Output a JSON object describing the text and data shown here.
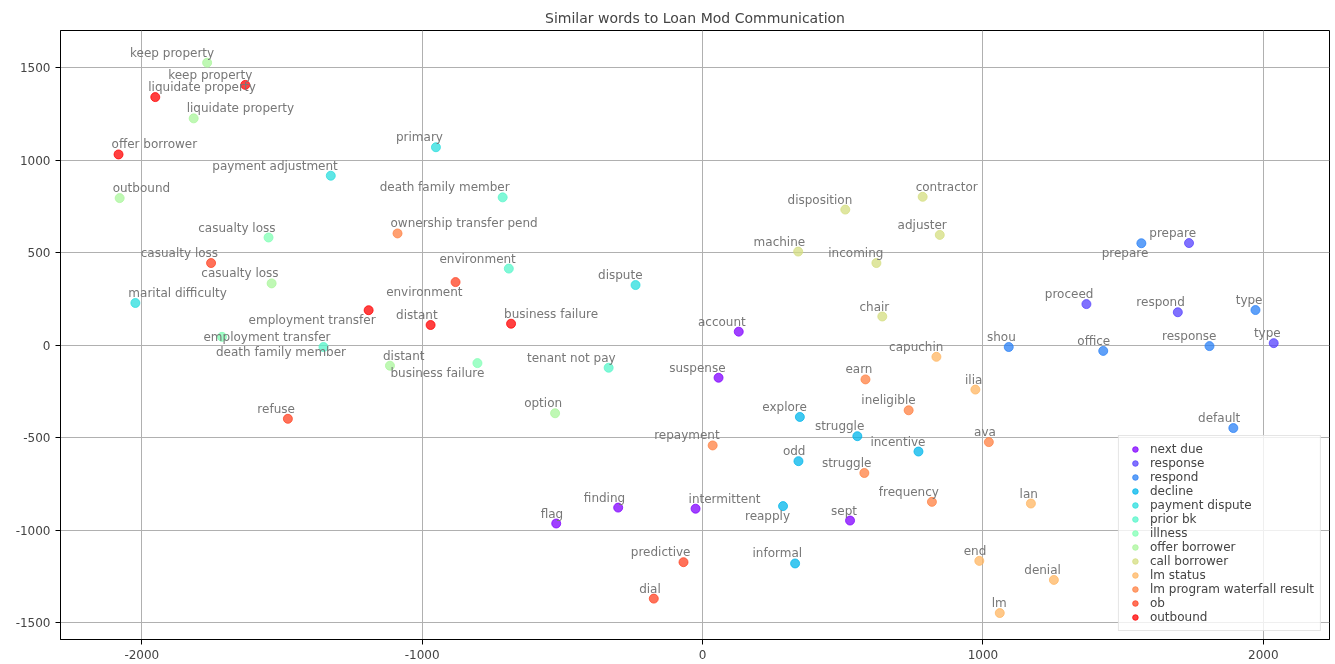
{
  "chart_data": {
    "type": "scatter",
    "title": "Similar words to Loan Mod Communication",
    "xlim": [
      -2290,
      2236
    ],
    "ylim": [
      -1590,
      1702
    ],
    "xticks": [
      -2000,
      -1000,
      0,
      1000,
      2000
    ],
    "yticks": [
      -1500,
      -1000,
      -500,
      0,
      500,
      1000,
      1500
    ],
    "grid": true,
    "legend": "bottom right",
    "marker": "circle",
    "series": [
      {
        "name": "next due",
        "color": "#8000ff",
        "x": [
          129,
          57,
          -301,
          -25,
          -522,
          526
        ],
        "values": [
          74,
          -175,
          -877,
          -883,
          -963,
          -947
        ]
      },
      {
        "name": "response",
        "color": "#5542fd",
        "x": [
          1735,
          1369,
          1695,
          2037
        ],
        "values": [
          553,
          223,
          179,
          12
        ]
      },
      {
        "name": "respond",
        "color": "#2a80f6",
        "x": [
          1565,
          1972,
          1092,
          1429,
          1808,
          1893
        ],
        "values": [
          552,
          191,
          -9,
          -30,
          -4,
          -447
        ]
      },
      {
        "name": "decline",
        "color": "#00b5eb",
        "x": [
          347,
          552,
          770,
          342,
          287,
          330
        ],
        "values": [
          -387,
          -491,
          -574,
          -626,
          -869,
          -1179
        ]
      },
      {
        "name": "payment dispute",
        "color": "#2adddd",
        "x": [
          -951,
          -1326,
          -2023,
          -239
        ],
        "values": [
          1071,
          917,
          229,
          326
        ]
      },
      {
        "name": "prior bk",
        "color": "#55f6ca",
        "x": [
          -713,
          -691,
          -1352,
          -335
        ],
        "values": [
          800,
          415,
          -9,
          -121
        ]
      },
      {
        "name": "illness",
        "color": "#80ffb4",
        "x": [
          -1548,
          -1714,
          -803
        ],
        "values": [
          583,
          46,
          -96
        ]
      },
      {
        "name": "offer borrower",
        "color": "#aaf69b",
        "x": [
          -1767,
          -1815,
          -2079,
          -1537,
          -1115,
          -526
        ],
        "values": [
          1528,
          1227,
          796,
          335,
          -110,
          -367
        ]
      },
      {
        "name": "call borrower",
        "color": "#d4dd80",
        "x": [
          509,
          785,
          341,
          620,
          641,
          846
        ],
        "values": [
          734,
          803,
          507,
          445,
          156,
          597
        ]
      },
      {
        "name": "lm status",
        "color": "#ffb562",
        "x": [
          834,
          973,
          1171,
          987,
          1253,
          1060
        ],
        "values": [
          -62,
          -239,
          -855,
          -1165,
          -1268,
          -1447
        ]
      },
      {
        "name": "lm program waterfall result",
        "color": "#ff8042",
        "x": [
          581,
          735,
          36,
          577,
          818,
          1021,
          -1088
        ],
        "values": [
          -184,
          -351,
          -541,
          -690,
          -846,
          -523,
          605
        ]
      },
      {
        "name": "ob",
        "color": "#ff4222",
        "x": [
          -1753,
          -881,
          -1479,
          -68,
          -174
        ],
        "values": [
          445,
          342,
          -397,
          -1172,
          -1369
        ]
      },
      {
        "name": "outbound",
        "color": "#ff0000",
        "x": [
          -1631,
          -1952,
          -2083,
          -1191,
          -970,
          -683
        ],
        "values": [
          1408,
          1342,
          1032,
          190,
          110,
          117
        ]
      }
    ],
    "annotations": [
      {
        "text": "account",
        "x": 129,
        "y": 74
      },
      {
        "text": "suspense",
        "x": 57,
        "y": -175
      },
      {
        "text": "finding",
        "x": -301,
        "y": -877
      },
      {
        "text": "intermittent",
        "x": -25,
        "y": -883
      },
      {
        "text": "flag",
        "x": -522,
        "y": -963
      },
      {
        "text": "sept",
        "x": 526,
        "y": -947
      },
      {
        "text": "prepare",
        "x": 1735,
        "y": 553
      },
      {
        "text": "proceed",
        "x": 1369,
        "y": 223
      },
      {
        "text": "respond",
        "x": 1695,
        "y": 179
      },
      {
        "text": "type",
        "x": 2037,
        "y": 12
      },
      {
        "text": "prepare",
        "x": 1565,
        "y": 552
      },
      {
        "text": "type",
        "x": 1972,
        "y": 191
      },
      {
        "text": "shou",
        "x": 1092,
        "y": -9
      },
      {
        "text": "office",
        "x": 1429,
        "y": -30
      },
      {
        "text": "response",
        "x": 1808,
        "y": -4
      },
      {
        "text": "default",
        "x": 1893,
        "y": -447
      },
      {
        "text": "explore",
        "x": 347,
        "y": -387
      },
      {
        "text": "struggle",
        "x": 552,
        "y": -491
      },
      {
        "text": "incentive",
        "x": 770,
        "y": -574
      },
      {
        "text": "odd",
        "x": 342,
        "y": -626
      },
      {
        "text": "reapply",
        "x": 287,
        "y": -869
      },
      {
        "text": "informal",
        "x": 330,
        "y": -1179
      },
      {
        "text": "primary",
        "x": -951,
        "y": 1071
      },
      {
        "text": "payment adjustment",
        "x": -1326,
        "y": 917
      },
      {
        "text": "marital difficulty",
        "x": -2023,
        "y": 229
      },
      {
        "text": "dispute",
        "x": -239,
        "y": 326
      },
      {
        "text": "death family member",
        "x": -713,
        "y": 800
      },
      {
        "text": "environment",
        "x": -691,
        "y": 415
      },
      {
        "text": "employment transfer",
        "x": -1352,
        "y": -9
      },
      {
        "text": "tenant not pay",
        "x": -335,
        "y": -121
      },
      {
        "text": "casualty loss",
        "x": -1548,
        "y": 583
      },
      {
        "text": "death family member",
        "x": -1714,
        "y": 46
      },
      {
        "text": "business failure",
        "x": -803,
        "y": -96
      },
      {
        "text": "keep property",
        "x": -1767,
        "y": 1528
      },
      {
        "text": "liquidate property",
        "x": -1815,
        "y": 1227
      },
      {
        "text": "outbound",
        "x": -2079,
        "y": 796
      },
      {
        "text": "casualty loss",
        "x": -1537,
        "y": 335
      },
      {
        "text": "distant",
        "x": -1115,
        "y": -110
      },
      {
        "text": "option",
        "x": -526,
        "y": -367
      },
      {
        "text": "disposition",
        "x": 509,
        "y": 734
      },
      {
        "text": "contractor",
        "x": 785,
        "y": 803
      },
      {
        "text": "machine",
        "x": 341,
        "y": 507
      },
      {
        "text": "incoming",
        "x": 620,
        "y": 445
      },
      {
        "text": "chair",
        "x": 641,
        "y": 156
      },
      {
        "text": "adjuster",
        "x": 846,
        "y": 597
      },
      {
        "text": "capuchin",
        "x": 834,
        "y": -62
      },
      {
        "text": "ilia",
        "x": 973,
        "y": -239
      },
      {
        "text": "lan",
        "x": 1171,
        "y": -855
      },
      {
        "text": "end",
        "x": 987,
        "y": -1165
      },
      {
        "text": "denial",
        "x": 1253,
        "y": -1268
      },
      {
        "text": "lm",
        "x": 1060,
        "y": -1447
      },
      {
        "text": "earn",
        "x": 581,
        "y": -184
      },
      {
        "text": "ineligible",
        "x": 735,
        "y": -351
      },
      {
        "text": "repayment",
        "x": 36,
        "y": -541
      },
      {
        "text": "struggle",
        "x": 577,
        "y": -690
      },
      {
        "text": "frequency",
        "x": 818,
        "y": -846
      },
      {
        "text": "ava",
        "x": 1021,
        "y": -523
      },
      {
        "text": "ownership transfer pend",
        "x": -1088,
        "y": 605
      },
      {
        "text": "casualty loss",
        "x": -1753,
        "y": 445
      },
      {
        "text": "environment",
        "x": -881,
        "y": 342
      },
      {
        "text": "refuse",
        "x": -1479,
        "y": -397
      },
      {
        "text": "predictive",
        "x": -68,
        "y": -1172
      },
      {
        "text": "dial",
        "x": -174,
        "y": -1369
      },
      {
        "text": "keep property",
        "x": -1631,
        "y": 1408
      },
      {
        "text": "liquidate property",
        "x": -1952,
        "y": 1342
      },
      {
        "text": "offer borrower",
        "x": -2083,
        "y": 1032
      },
      {
        "text": "employment transfer",
        "x": -1191,
        "y": 190
      },
      {
        "text": "distant",
        "x": -970,
        "y": 110
      },
      {
        "text": "business failure",
        "x": -683,
        "y": 117
      }
    ]
  }
}
